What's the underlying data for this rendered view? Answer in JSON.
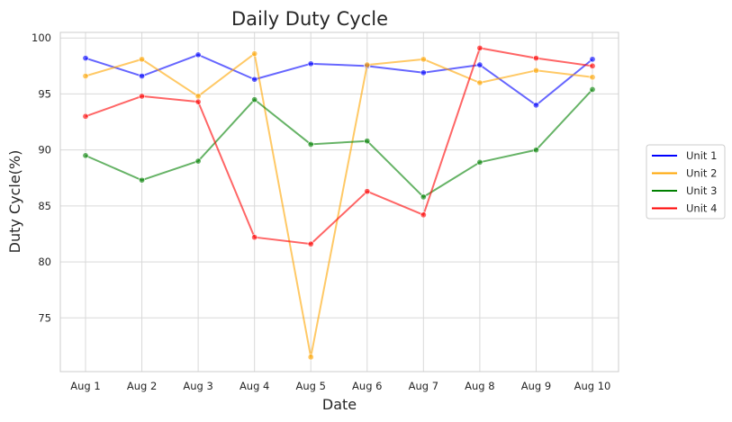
{
  "chart_data": {
    "type": "line",
    "title": "Daily Duty Cycle",
    "xlabel": "Date",
    "ylabel": "Duty Cycle(%)",
    "categories": [
      "Aug 1",
      "Aug 2",
      "Aug 3",
      "Aug 4",
      "Aug 5",
      "Aug 6",
      "Aug 7",
      "Aug 8",
      "Aug 9",
      "Aug 10"
    ],
    "yticks": [
      75,
      80,
      85,
      90,
      95,
      100
    ],
    "ylim": [
      70.2,
      100.5
    ],
    "grid": true,
    "legend_position": "right",
    "series": [
      {
        "name": "Unit 1",
        "color": "#0000ff",
        "values": [
          98.2,
          96.6,
          98.5,
          96.3,
          97.7,
          97.5,
          96.9,
          97.6,
          94.0,
          98.1
        ]
      },
      {
        "name": "Unit 2",
        "color": "#ffa500",
        "values": [
          96.6,
          98.1,
          94.8,
          98.6,
          71.5,
          97.6,
          98.1,
          96.0,
          97.1,
          96.5
        ]
      },
      {
        "name": "Unit 3",
        "color": "#008000",
        "values": [
          89.5,
          87.3,
          89.0,
          94.5,
          90.5,
          90.8,
          85.8,
          88.9,
          90.0,
          95.4
        ]
      },
      {
        "name": "Unit 4",
        "color": "#ff0000",
        "values": [
          93.0,
          94.8,
          94.3,
          82.2,
          81.6,
          86.3,
          84.2,
          99.1,
          98.2,
          97.5
        ]
      }
    ]
  }
}
